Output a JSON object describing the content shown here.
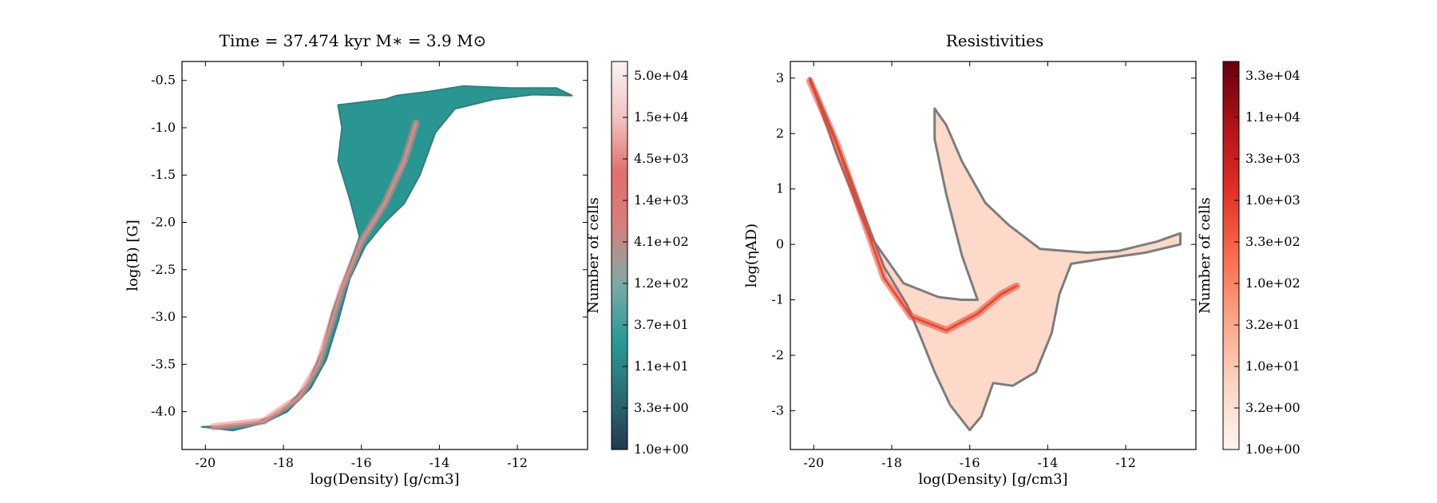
{
  "chart_data": [
    {
      "type": "heatmap",
      "title": "Time = 37.474 kyr    M$_*$ = 3.9 M$_\\odot$",
      "title_display": "Time = 37.474 kyr    M∗ = 3.9 M⊙",
      "xlabel": "log(Density) [g/cm3]",
      "ylabel": "log(B) [G]",
      "xlim": [
        -20.6,
        -10.2
      ],
      "ylim": [
        -4.4,
        -0.3
      ],
      "xticks": [
        -20,
        -18,
        -16,
        -14,
        -12
      ],
      "yticks": [
        -4.0,
        -3.5,
        -3.0,
        -2.5,
        -2.0,
        -1.5,
        -1.0,
        -0.5
      ],
      "xticklabels": [
        "-20",
        "-18",
        "-16",
        "-14",
        "-12"
      ],
      "yticklabels": [
        "-4.0",
        "-3.5",
        "-3.0",
        "-2.5",
        "-2.0",
        "-1.5",
        "-1.0",
        "-0.5"
      ],
      "colorbar_label": "Number of cells",
      "colorbar_scale": "log",
      "colorbar_ticklabels": [
        "1.0e+00",
        "3.3e+00",
        "1.1e+01",
        "3.7e+01",
        "1.2e+02",
        "4.1e+02",
        "1.4e+03",
        "4.5e+03",
        "1.5e+04",
        "5.0e+04"
      ],
      "colormap": [
        "#233850",
        "#2a6e74",
        "#2a9b98",
        "#7fa9a5",
        "#d4807d",
        "#e26e6e",
        "#f1c4c4",
        "#fbf3f3"
      ],
      "grid": false,
      "region_outline": [
        [
          -20.1,
          -4.16
        ],
        [
          -19.3,
          -4.2
        ],
        [
          -18.5,
          -4.12
        ],
        [
          -17.9,
          -4.0
        ],
        [
          -17.3,
          -3.75
        ],
        [
          -16.9,
          -3.45
        ],
        [
          -16.6,
          -3.05
        ],
        [
          -16.3,
          -2.6
        ],
        [
          -15.9,
          -2.25
        ],
        [
          -15.4,
          -2.0
        ],
        [
          -14.9,
          -1.8
        ],
        [
          -14.5,
          -1.5
        ],
        [
          -14.1,
          -1.05
        ],
        [
          -13.6,
          -0.8
        ],
        [
          -12.6,
          -0.7
        ],
        [
          -11.6,
          -0.65
        ],
        [
          -10.6,
          -0.66
        ],
        [
          -11.0,
          -0.58
        ],
        [
          -12.2,
          -0.58
        ],
        [
          -13.4,
          -0.56
        ],
        [
          -14.3,
          -0.62
        ],
        [
          -15.1,
          -0.66
        ],
        [
          -15.4,
          -0.7
        ],
        [
          -15.8,
          -0.72
        ],
        [
          -16.6,
          -0.76
        ],
        [
          -16.5,
          -1.0
        ],
        [
          -16.6,
          -1.35
        ],
        [
          -16.3,
          -1.75
        ],
        [
          -16.05,
          -2.15
        ],
        [
          -16.35,
          -2.5
        ],
        [
          -16.75,
          -2.95
        ],
        [
          -17.0,
          -3.35
        ],
        [
          -17.4,
          -3.72
        ],
        [
          -18.1,
          -4.02
        ],
        [
          -18.9,
          -4.14
        ],
        [
          -20.1,
          -4.16
        ]
      ],
      "ridge": [
        [
          -19.8,
          -4.16
        ],
        [
          -18.5,
          -4.1
        ],
        [
          -17.6,
          -3.85
        ],
        [
          -17.1,
          -3.5
        ],
        [
          -16.8,
          -3.1
        ],
        [
          -16.5,
          -2.7
        ],
        [
          -16.0,
          -2.2
        ],
        [
          -15.4,
          -1.8
        ],
        [
          -14.9,
          -1.35
        ],
        [
          -14.6,
          -0.95
        ]
      ]
    },
    {
      "type": "heatmap",
      "title": "Resistivities",
      "xlabel": "log(Density) [g/cm3]",
      "ylabel": "log($\\eta_{AD}$)",
      "ylabel_display": "log(ηAD)",
      "xlim": [
        -20.6,
        -10.2
      ],
      "ylim": [
        -3.7,
        3.3
      ],
      "xticks": [
        -20,
        -18,
        -16,
        -14,
        -12
      ],
      "yticks": [
        -3,
        -2,
        -1,
        0,
        1,
        2,
        3
      ],
      "xticklabels": [
        "-20",
        "-18",
        "-16",
        "-14",
        "-12"
      ],
      "yticklabels": [
        "-3",
        "-2",
        "-1",
        "0",
        "1",
        "2",
        "3"
      ],
      "colorbar_label": "Number of cells",
      "colorbar_scale": "log",
      "colorbar_ticklabels": [
        "1.0e+00",
        "3.2e+00",
        "1.0e+01",
        "3.2e+01",
        "1.0e+02",
        "3.3e+02",
        "1.0e+03",
        "3.3e+03",
        "1.1e+04",
        "3.3e+04"
      ],
      "colormap": [
        "#fff5f0",
        "#fdd5c2",
        "#fca486",
        "#fb6b4b",
        "#e32f27",
        "#b11218",
        "#67000d"
      ],
      "grid": false,
      "region_outline": [
        [
          -20.1,
          3.0
        ],
        [
          -19.5,
          2.0
        ],
        [
          -18.8,
          0.7
        ],
        [
          -18.2,
          -0.4
        ],
        [
          -17.6,
          -1.1
        ],
        [
          -17.3,
          -1.6
        ],
        [
          -16.9,
          -2.3
        ],
        [
          -16.5,
          -2.9
        ],
        [
          -16.0,
          -3.35
        ],
        [
          -15.7,
          -3.1
        ],
        [
          -15.4,
          -2.5
        ],
        [
          -14.9,
          -2.55
        ],
        [
          -14.3,
          -2.3
        ],
        [
          -13.9,
          -1.6
        ],
        [
          -13.7,
          -0.9
        ],
        [
          -13.4,
          -0.35
        ],
        [
          -12.5,
          -0.25
        ],
        [
          -11.5,
          -0.15
        ],
        [
          -10.6,
          0.0
        ],
        [
          -10.6,
          0.2
        ],
        [
          -11.2,
          0.05
        ],
        [
          -12.2,
          -0.12
        ],
        [
          -13.0,
          -0.15
        ],
        [
          -14.2,
          -0.08
        ],
        [
          -15.0,
          0.35
        ],
        [
          -15.6,
          0.75
        ],
        [
          -16.2,
          1.5
        ],
        [
          -16.6,
          2.15
        ],
        [
          -16.9,
          2.45
        ],
        [
          -16.9,
          1.9
        ],
        [
          -16.6,
          0.9
        ],
        [
          -16.2,
          -0.2
        ],
        [
          -15.8,
          -1.0
        ],
        [
          -16.2,
          -1.0
        ],
        [
          -16.8,
          -0.95
        ],
        [
          -17.7,
          -0.7
        ],
        [
          -18.6,
          0.2
        ],
        [
          -19.4,
          1.6
        ],
        [
          -20.1,
          3.0
        ]
      ],
      "ridge": [
        [
          -20.1,
          2.95
        ],
        [
          -19.4,
          1.8
        ],
        [
          -18.8,
          0.6
        ],
        [
          -18.2,
          -0.6
        ],
        [
          -17.5,
          -1.3
        ],
        [
          -16.6,
          -1.55
        ],
        [
          -15.8,
          -1.25
        ],
        [
          -15.2,
          -0.9
        ],
        [
          -14.8,
          -0.75
        ]
      ]
    }
  ]
}
